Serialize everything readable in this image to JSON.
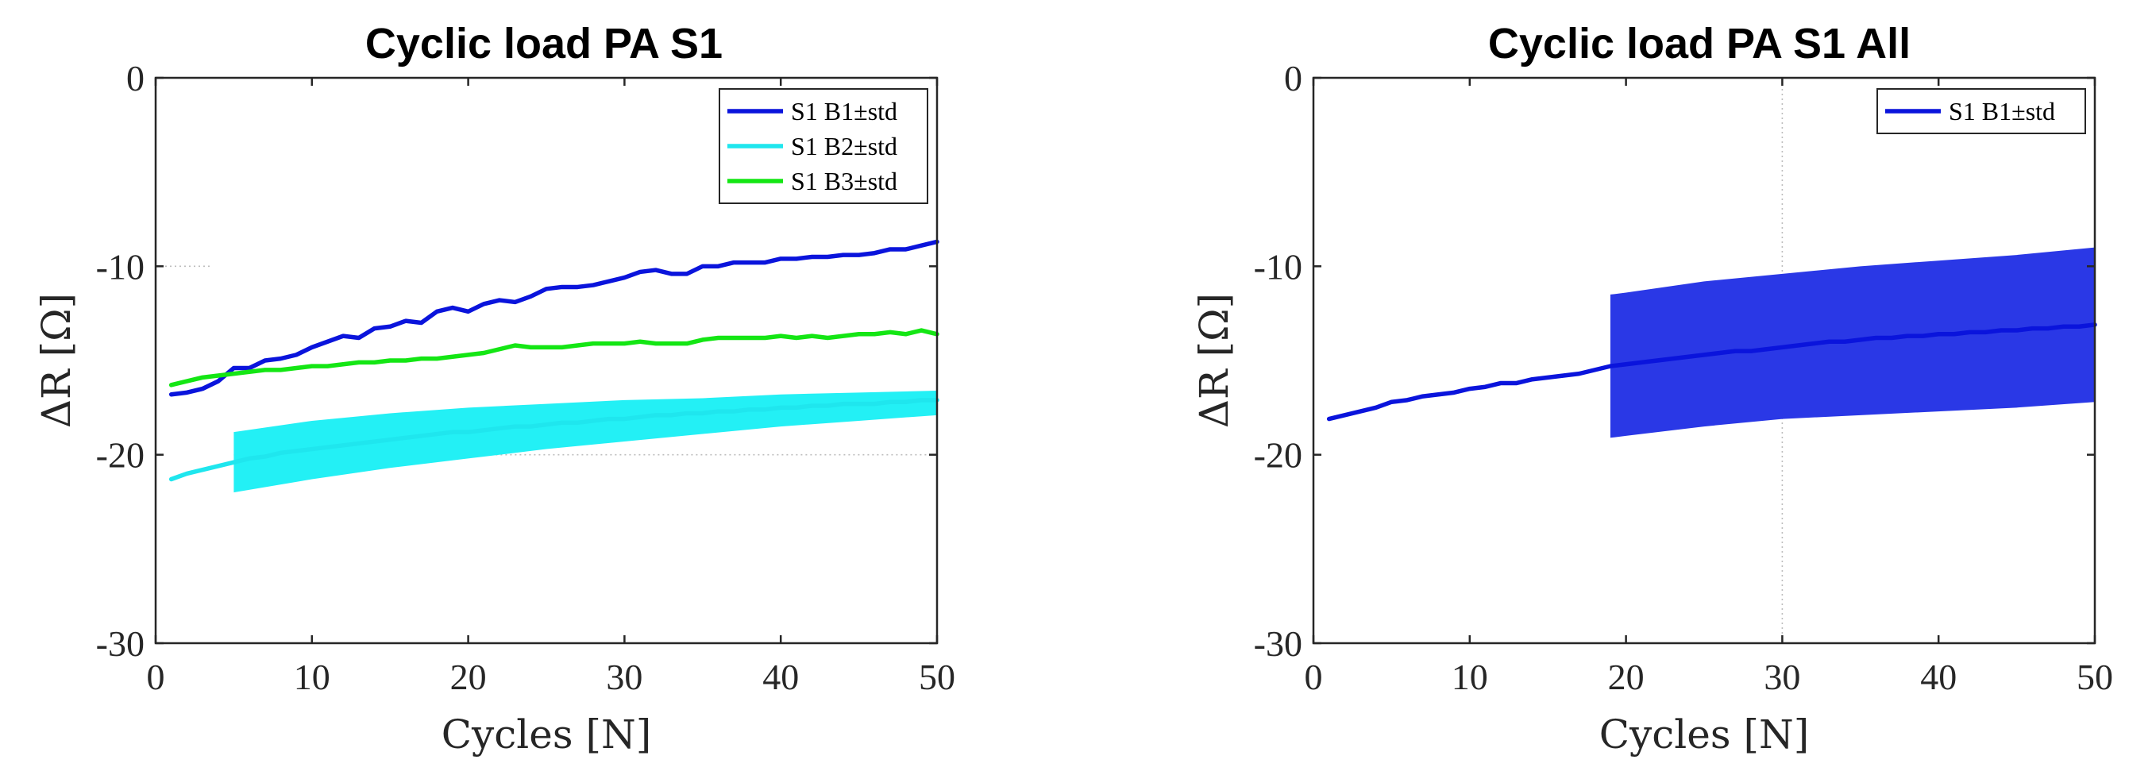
{
  "chart_data": [
    {
      "type": "line",
      "title": "Cyclic load PA S1",
      "xlabel": "Cycles [N]",
      "ylabel": "ΔR [Ω]",
      "xlim": [
        0,
        50
      ],
      "ylim": [
        -30,
        0
      ],
      "xticks": [
        0,
        10,
        20,
        30,
        40,
        50
      ],
      "yticks": [
        0,
        -10,
        -20,
        -30
      ],
      "xtick_labels": [
        "0",
        "10",
        "20",
        "30",
        "40",
        "50"
      ],
      "ytick_labels": [
        "0",
        "-10",
        "-20",
        "-30"
      ],
      "legend_position": "top-right",
      "series": [
        {
          "name": "S1 B1±std",
          "color": "#0a14dc",
          "x": [
            1,
            2,
            3,
            4,
            5,
            6,
            7,
            8,
            9,
            10,
            11,
            12,
            13,
            14,
            15,
            16,
            17,
            18,
            19,
            20,
            21,
            22,
            23,
            24,
            25,
            26,
            27,
            28,
            29,
            30,
            31,
            32,
            33,
            34,
            35,
            36,
            37,
            38,
            39,
            40,
            41,
            42,
            43,
            44,
            45,
            46,
            47,
            48,
            49,
            50
          ],
          "values": [
            -16.8,
            -16.7,
            -16.5,
            -16.1,
            -15.4,
            -15.4,
            -15.0,
            -14.9,
            -14.7,
            -14.3,
            -14.0,
            -13.7,
            -13.8,
            -13.3,
            -13.2,
            -12.9,
            -13.0,
            -12.4,
            -12.2,
            -12.4,
            -12.0,
            -11.8,
            -11.9,
            -11.6,
            -11.2,
            -11.1,
            -11.1,
            -11.0,
            -10.8,
            -10.6,
            -10.3,
            -10.2,
            -10.4,
            -10.4,
            -10.0,
            -10.0,
            -9.8,
            -9.8,
            -9.8,
            -9.6,
            -9.6,
            -9.5,
            -9.5,
            -9.4,
            -9.4,
            -9.3,
            -9.1,
            -9.1,
            -8.9,
            -8.7
          ]
        },
        {
          "name": "S1 B2±std",
          "color": "#1fe6ee",
          "band_color": "#23f0f5",
          "x": [
            1,
            2,
            3,
            4,
            5,
            6,
            7,
            8,
            9,
            10,
            11,
            12,
            13,
            14,
            15,
            16,
            17,
            18,
            19,
            20,
            21,
            22,
            23,
            24,
            25,
            26,
            27,
            28,
            29,
            30,
            31,
            32,
            33,
            34,
            35,
            36,
            37,
            38,
            39,
            40,
            41,
            42,
            43,
            44,
            45,
            46,
            47,
            48,
            49,
            50
          ],
          "values": [
            -21.3,
            -21.0,
            -20.8,
            -20.6,
            -20.4,
            -20.2,
            -20.1,
            -19.9,
            -19.8,
            -19.7,
            -19.6,
            -19.5,
            -19.4,
            -19.3,
            -19.2,
            -19.1,
            -19.0,
            -18.9,
            -18.8,
            -18.8,
            -18.7,
            -18.6,
            -18.5,
            -18.5,
            -18.4,
            -18.3,
            -18.3,
            -18.2,
            -18.1,
            -18.1,
            -18.0,
            -17.9,
            -17.9,
            -17.8,
            -17.8,
            -17.7,
            -17.7,
            -17.6,
            -17.6,
            -17.5,
            -17.5,
            -17.4,
            -17.4,
            -17.3,
            -17.3,
            -17.3,
            -17.2,
            -17.2,
            -17.1,
            -17.1
          ],
          "band": {
            "x": [
              5,
              10,
              15,
              20,
              25,
              30,
              35,
              40,
              45,
              50
            ],
            "upper": [
              -18.8,
              -18.2,
              -17.8,
              -17.5,
              -17.3,
              -17.1,
              -17.0,
              -16.8,
              -16.7,
              -16.6
            ],
            "lower": [
              -22.0,
              -21.3,
              -20.7,
              -20.2,
              -19.7,
              -19.3,
              -18.9,
              -18.5,
              -18.2,
              -17.9
            ]
          }
        },
        {
          "name": "S1 B3±std",
          "color": "#14e614",
          "x": [
            1,
            2,
            3,
            4,
            5,
            6,
            7,
            8,
            9,
            10,
            11,
            12,
            13,
            14,
            15,
            16,
            17,
            18,
            19,
            20,
            21,
            22,
            23,
            24,
            25,
            26,
            27,
            28,
            29,
            30,
            31,
            32,
            33,
            34,
            35,
            36,
            37,
            38,
            39,
            40,
            41,
            42,
            43,
            44,
            45,
            46,
            47,
            48,
            49,
            50
          ],
          "values": [
            -16.3,
            -16.1,
            -15.9,
            -15.8,
            -15.7,
            -15.6,
            -15.5,
            -15.5,
            -15.4,
            -15.3,
            -15.3,
            -15.2,
            -15.1,
            -15.1,
            -15.0,
            -15.0,
            -14.9,
            -14.9,
            -14.8,
            -14.7,
            -14.6,
            -14.4,
            -14.2,
            -14.3,
            -14.3,
            -14.3,
            -14.2,
            -14.1,
            -14.1,
            -14.1,
            -14.0,
            -14.1,
            -14.1,
            -14.1,
            -13.9,
            -13.8,
            -13.8,
            -13.8,
            -13.8,
            -13.7,
            -13.8,
            -13.7,
            -13.8,
            -13.7,
            -13.6,
            -13.6,
            -13.5,
            -13.6,
            -13.4,
            -13.6
          ]
        }
      ],
      "reference_lines": [
        {
          "orientation": "horizontal",
          "y": -10,
          "x": [
            0,
            3.5
          ]
        },
        {
          "orientation": "horizontal",
          "y": -20,
          "x": [
            5,
            50
          ]
        }
      ]
    },
    {
      "type": "line",
      "title": "Cyclic load PA S1 All",
      "xlabel": "Cycles [N]",
      "ylabel": "ΔR [Ω]",
      "xlim": [
        0,
        50
      ],
      "ylim": [
        -30,
        0
      ],
      "xticks": [
        0,
        10,
        20,
        30,
        40,
        50
      ],
      "yticks": [
        0,
        -10,
        -20,
        -30
      ],
      "xtick_labels": [
        "0",
        "10",
        "20",
        "30",
        "40",
        "50"
      ],
      "ytick_labels": [
        "0",
        "-10",
        "-20",
        "-30"
      ],
      "legend_position": "top-right",
      "series": [
        {
          "name": "S1 B1±std",
          "color": "#0a14dc",
          "band_color": "#2a38e6",
          "x": [
            1,
            2,
            3,
            4,
            5,
            6,
            7,
            8,
            9,
            10,
            11,
            12,
            13,
            14,
            15,
            16,
            17,
            18,
            19,
            20,
            21,
            22,
            23,
            24,
            25,
            26,
            27,
            28,
            29,
            30,
            31,
            32,
            33,
            34,
            35,
            36,
            37,
            38,
            39,
            40,
            41,
            42,
            43,
            44,
            45,
            46,
            47,
            48,
            49,
            50
          ],
          "values": [
            -18.1,
            -17.9,
            -17.7,
            -17.5,
            -17.2,
            -17.1,
            -16.9,
            -16.8,
            -16.7,
            -16.5,
            -16.4,
            -16.2,
            -16.2,
            -16.0,
            -15.9,
            -15.8,
            -15.7,
            -15.5,
            -15.3,
            -15.2,
            -15.1,
            -15.0,
            -14.9,
            -14.8,
            -14.7,
            -14.6,
            -14.5,
            -14.5,
            -14.4,
            -14.3,
            -14.2,
            -14.1,
            -14.0,
            -14.0,
            -13.9,
            -13.8,
            -13.8,
            -13.7,
            -13.7,
            -13.6,
            -13.6,
            -13.5,
            -13.5,
            -13.4,
            -13.4,
            -13.3,
            -13.3,
            -13.2,
            -13.2,
            -13.1
          ],
          "band": {
            "x": [
              19,
              20,
              25,
              30,
              35,
              40,
              45,
              50
            ],
            "upper": [
              -11.5,
              -11.4,
              -10.8,
              -10.4,
              -10.0,
              -9.7,
              -9.4,
              -9.0
            ],
            "lower": [
              -19.1,
              -19.0,
              -18.5,
              -18.1,
              -17.9,
              -17.7,
              -17.5,
              -17.2
            ]
          }
        }
      ],
      "reference_lines": [
        {
          "orientation": "vertical",
          "x": 30,
          "y": [
            -30,
            0
          ]
        }
      ]
    }
  ]
}
